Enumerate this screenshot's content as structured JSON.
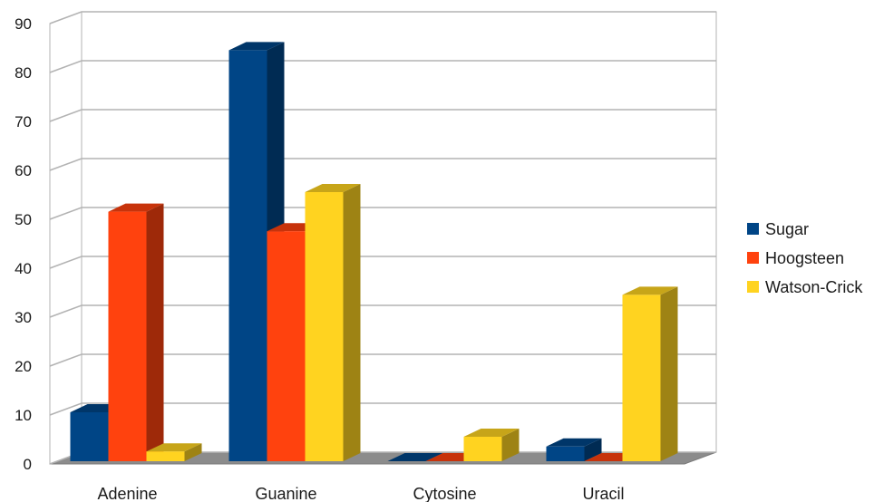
{
  "chart_data": {
    "type": "bar",
    "style": "3d-clustered-column",
    "categories": [
      "Adenine",
      "Guanine",
      "Cytosine",
      "Uracil"
    ],
    "series": [
      {
        "name": "Sugar",
        "values": [
          10,
          84,
          0,
          3
        ],
        "color": "#004586"
      },
      {
        "name": "Hoogsteen",
        "values": [
          51,
          47,
          0,
          0
        ],
        "color": "#ff420e"
      },
      {
        "name": "Watson-Crick",
        "values": [
          2,
          55,
          5,
          34
        ],
        "color": "#ffd320"
      }
    ],
    "ylim": [
      0,
      90
    ],
    "yticks": [
      0,
      10,
      20,
      30,
      40,
      50,
      60,
      70,
      80,
      90
    ],
    "grid": true,
    "legend": "right"
  }
}
